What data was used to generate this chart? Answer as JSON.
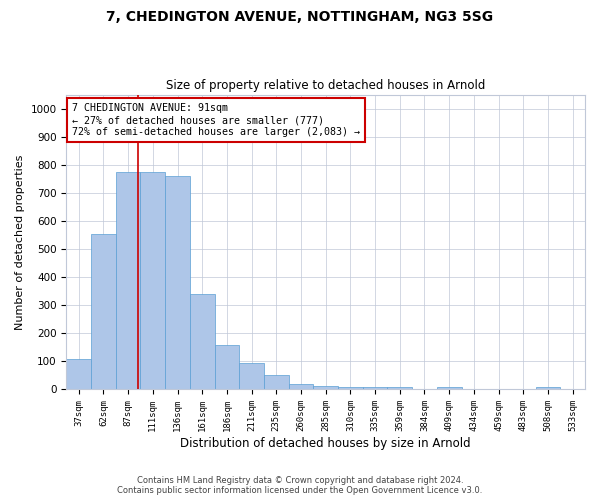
{
  "title1": "7, CHEDINGTON AVENUE, NOTTINGHAM, NG3 5SG",
  "title2": "Size of property relative to detached houses in Arnold",
  "xlabel": "Distribution of detached houses by size in Arnold",
  "ylabel": "Number of detached properties",
  "categories": [
    "37sqm",
    "62sqm",
    "87sqm",
    "111sqm",
    "136sqm",
    "161sqm",
    "186sqm",
    "211sqm",
    "235sqm",
    "260sqm",
    "285sqm",
    "310sqm",
    "335sqm",
    "359sqm",
    "384sqm",
    "409sqm",
    "434sqm",
    "459sqm",
    "483sqm",
    "508sqm",
    "533sqm"
  ],
  "values": [
    110,
    555,
    775,
    775,
    760,
    340,
    160,
    95,
    50,
    20,
    13,
    10,
    10,
    10,
    0,
    8,
    0,
    0,
    0,
    10,
    0
  ],
  "bar_color": "#aec6e8",
  "bar_edge_color": "#5a9fd4",
  "vline_x_index": 2.4,
  "vline_color": "#cc0000",
  "ylim": [
    0,
    1050
  ],
  "yticks": [
    0,
    100,
    200,
    300,
    400,
    500,
    600,
    700,
    800,
    900,
    1000
  ],
  "annotation_text": "7 CHEDINGTON AVENUE: 91sqm\n← 27% of detached houses are smaller (777)\n72% of semi-detached houses are larger (2,083) →",
  "annotation_box_color": "#ffffff",
  "annotation_box_edge": "#cc0000",
  "footer1": "Contains HM Land Registry data © Crown copyright and database right 2024.",
  "footer2": "Contains public sector information licensed under the Open Government Licence v3.0."
}
